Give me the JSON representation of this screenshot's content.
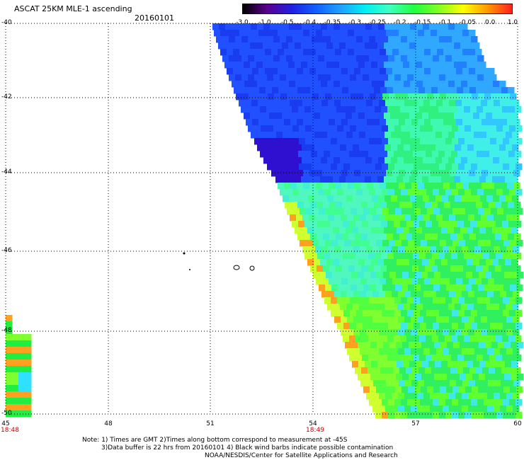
{
  "header": {
    "title": "ASCAT 25KM MLE-1 ascending",
    "date": "20160101"
  },
  "colorbar": {
    "labels": [
      "-3.0",
      "-1.0",
      "-0.5",
      "-0.4",
      "-0.35",
      "-0.3",
      "-0.25",
      "-0.2",
      "-0.15",
      "-0.1",
      "-0.05",
      "0.0",
      "1.0"
    ],
    "colors": [
      "#000000",
      "#5a0090",
      "#2020e0",
      "#1060ff",
      "#20a0ff",
      "#00f0f0",
      "#40ffc0",
      "#20ff40",
      "#80ff20",
      "#ffff00",
      "#ff9900",
      "#ff2020"
    ]
  },
  "axes": {
    "lat_labels": [
      "-40",
      "-42",
      "-44",
      "-46",
      "-48",
      "-50"
    ],
    "lon_labels": [
      "45",
      "48",
      "51",
      "54",
      "57",
      "60"
    ],
    "time_labels": [
      "18:48",
      "18:49"
    ]
  },
  "notes": {
    "line1": "Note: 1) Times are GMT 2)Times along bottom correspond to measurement at -45S",
    "line2": "3)Data buffer is 22 hrs from 20160101 4) Black wind barbs indicate possible contamination",
    "line3": "NOAA/NESDIS/Center for Satellite Applications and Research"
  }
}
